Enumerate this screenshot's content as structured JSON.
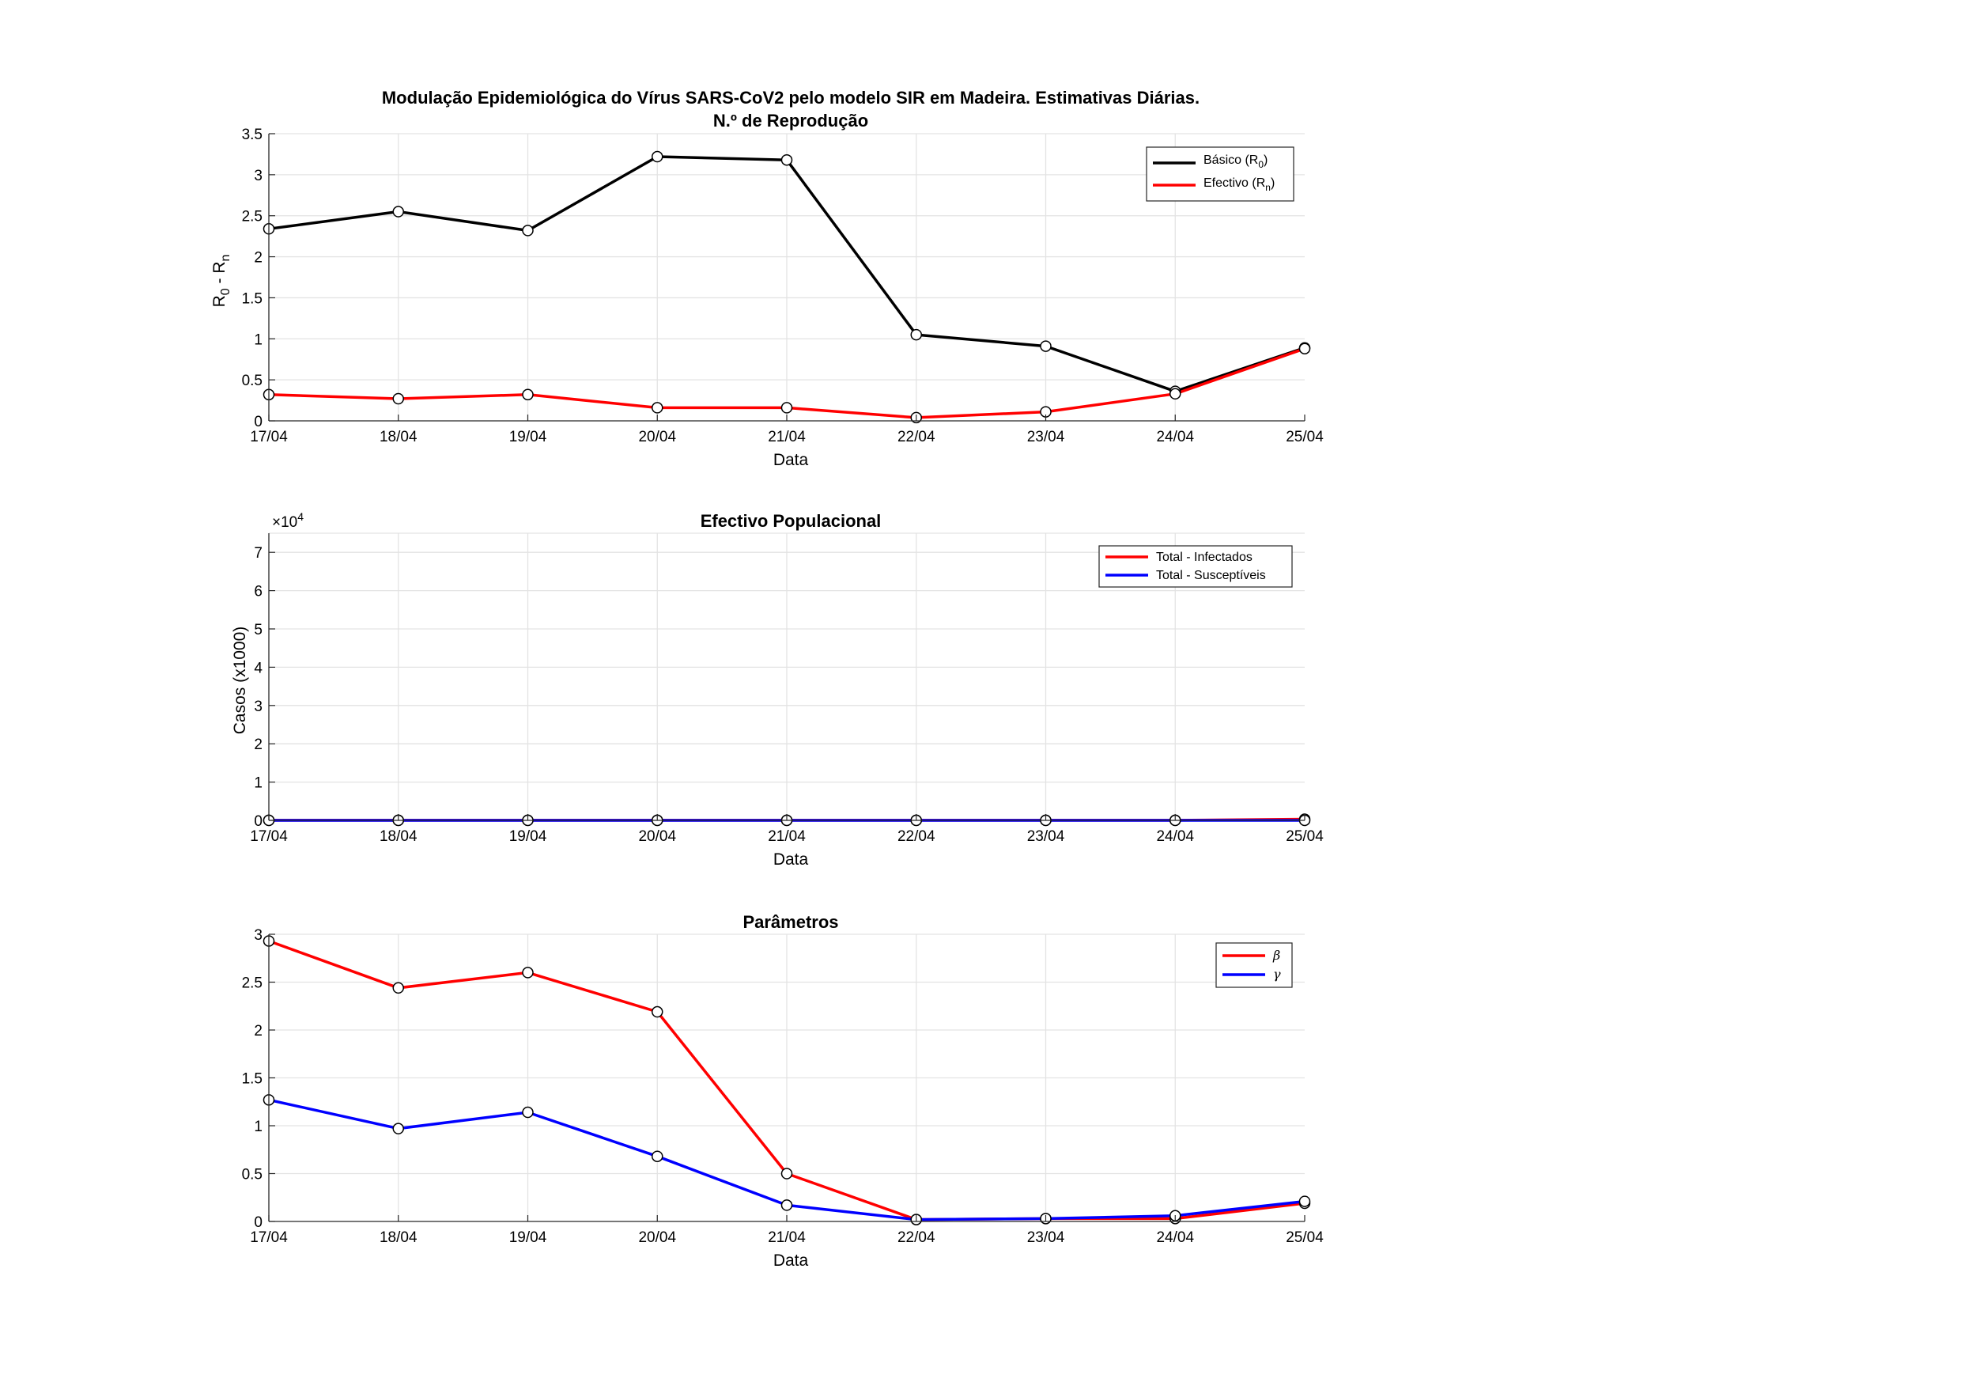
{
  "chart_data": [
    {
      "type": "line",
      "title": "Modulação Epidemiológica do Vírus SARS-CoV2 pelo modelo SIR em Madeira. Estimativas Diárias.",
      "subtitle": "N.º de Reprodução",
      "xlabel": "Data",
      "ylabel": "R",
      "ylabel_parts": [
        "R",
        "0",
        " - R",
        "n"
      ],
      "categories": [
        "17/04",
        "18/04",
        "19/04",
        "20/04",
        "21/04",
        "22/04",
        "23/04",
        "24/04",
        "25/04"
      ],
      "ylim": [
        0,
        3.5
      ],
      "yticks": [
        "0",
        "0.5",
        "1",
        "1.5",
        "2",
        "2.5",
        "3",
        "3.5"
      ],
      "grid": true,
      "legend_position": "top-right",
      "series": [
        {
          "name": "Básico (R",
          "name_sub": "0",
          "name_suffix": ")",
          "color": "#000000",
          "values": [
            2.34,
            2.55,
            2.32,
            3.22,
            3.18,
            1.05,
            0.91,
            0.36,
            0.89
          ]
        },
        {
          "name": "Efectivo (R",
          "name_sub": "n",
          "name_suffix": ")",
          "color": "#ff0000",
          "values": [
            0.32,
            0.27,
            0.32,
            0.16,
            0.16,
            0.04,
            0.11,
            0.33,
            0.88
          ]
        }
      ]
    },
    {
      "type": "line",
      "title": "Efectivo Populacional",
      "xlabel": "Data",
      "ylabel": "Casos (x1000)",
      "categories": [
        "17/04",
        "18/04",
        "19/04",
        "20/04",
        "21/04",
        "22/04",
        "23/04",
        "24/04",
        "25/04"
      ],
      "ylim": [
        0,
        7.5
      ],
      "yticks": [
        "0",
        "1",
        "2",
        "3",
        "4",
        "5",
        "6",
        "7"
      ],
      "y_exponent_base": "×10",
      "y_exponent_power": "4",
      "grid": true,
      "legend_position": "top-right",
      "series": [
        {
          "name": "Total - Infectados",
          "color": "#ff0000",
          "values": [
            0.003,
            0.003,
            0.003,
            0.003,
            0.003,
            0.003,
            0.003,
            0.003,
            0.03
          ]
        },
        {
          "name": "Total - Susceptíveis",
          "color": "#0000ff",
          "values": [
            0.001,
            0.001,
            0.001,
            0.001,
            0.001,
            0.001,
            0.001,
            0.001,
            0.001
          ]
        }
      ]
    },
    {
      "type": "line",
      "title": "Parâmetros",
      "xlabel": "Data",
      "ylabel": "",
      "categories": [
        "17/04",
        "18/04",
        "19/04",
        "20/04",
        "21/04",
        "22/04",
        "23/04",
        "24/04",
        "25/04"
      ],
      "ylim": [
        0,
        3
      ],
      "yticks": [
        "0",
        "0.5",
        "1",
        "1.5",
        "2",
        "2.5",
        "3"
      ],
      "grid": true,
      "legend_position": "top-right",
      "series": [
        {
          "name": "β",
          "color": "#ff0000",
          "values": [
            2.93,
            2.44,
            2.6,
            2.19,
            0.5,
            0.02,
            0.03,
            0.03,
            0.19
          ]
        },
        {
          "name": "γ",
          "color": "#0000ff",
          "values": [
            1.27,
            0.97,
            1.14,
            0.68,
            0.17,
            0.02,
            0.03,
            0.06,
            0.21
          ]
        }
      ]
    }
  ]
}
